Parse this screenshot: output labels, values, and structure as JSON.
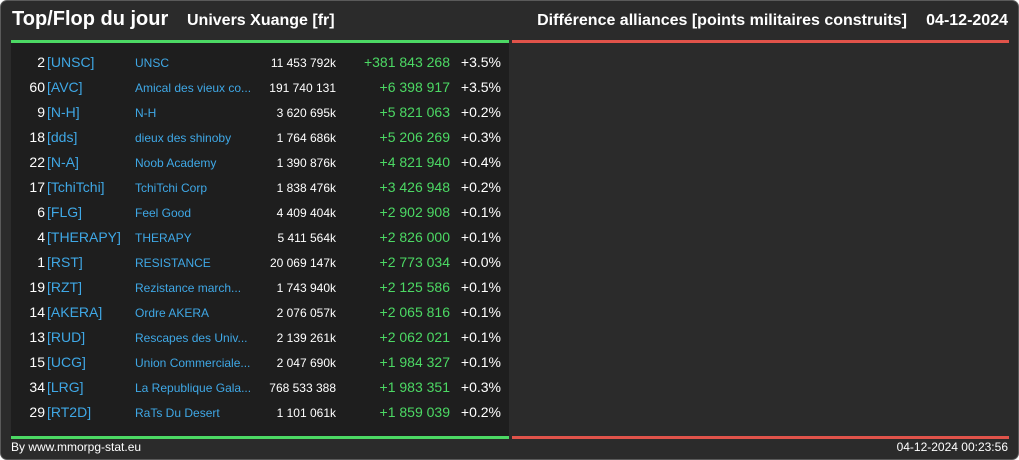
{
  "header": {
    "title": "Top/Flop du jour",
    "subtitle": "Univers Xuange [fr]",
    "right_title": "Différence alliances [points militaires construits]",
    "date": "04-12-2024"
  },
  "top_rows": [
    {
      "rank": "2",
      "tag": "[UNSC]",
      "name": "UNSC",
      "points": "11 453 792k",
      "diff": "+381 843 268",
      "pct": "+3.5%"
    },
    {
      "rank": "60",
      "tag": "[AVC]",
      "name": "Amical des vieux co...",
      "points": "191 740 131",
      "diff": "+6 398 917",
      "pct": "+3.5%"
    },
    {
      "rank": "9",
      "tag": "[N-H]",
      "name": "N-H",
      "points": "3 620 695k",
      "diff": "+5 821 063",
      "pct": "+0.2%"
    },
    {
      "rank": "18",
      "tag": "[dds]",
      "name": "dieux des shinoby",
      "points": "1 764 686k",
      "diff": "+5 206 269",
      "pct": "+0.3%"
    },
    {
      "rank": "22",
      "tag": "[N-A]",
      "name": "Noob Academy",
      "points": "1 390 876k",
      "diff": "+4 821 940",
      "pct": "+0.4%"
    },
    {
      "rank": "17",
      "tag": "[TchiTchi]",
      "name": "TchiTchi Corp",
      "points": "1 838 476k",
      "diff": "+3 426 948",
      "pct": "+0.2%"
    },
    {
      "rank": "6",
      "tag": "[FLG]",
      "name": "Feel Good",
      "points": "4 409 404k",
      "diff": "+2 902 908",
      "pct": "+0.1%"
    },
    {
      "rank": "4",
      "tag": "[THERAPY]",
      "name": "THERAPY",
      "points": "5 411 564k",
      "diff": "+2 826 000",
      "pct": "+0.1%"
    },
    {
      "rank": "1",
      "tag": "[RST]",
      "name": "RESISTANCE",
      "points": "20 069 147k",
      "diff": "+2 773 034",
      "pct": "+0.0%"
    },
    {
      "rank": "19",
      "tag": "[RZT]",
      "name": "Rezistance march...",
      "points": "1 743 940k",
      "diff": "+2 125 586",
      "pct": "+0.1%"
    },
    {
      "rank": "14",
      "tag": "[AKERA]",
      "name": "Ordre AKERA",
      "points": "2 076 057k",
      "diff": "+2 065 816",
      "pct": "+0.1%"
    },
    {
      "rank": "13",
      "tag": "[RUD]",
      "name": "Rescapes des Univ...",
      "points": "2 139 261k",
      "diff": "+2 062 021",
      "pct": "+0.1%"
    },
    {
      "rank": "15",
      "tag": "[UCG]",
      "name": "Union Commerciale...",
      "points": "2 047 690k",
      "diff": "+1 984 327",
      "pct": "+0.1%"
    },
    {
      "rank": "34",
      "tag": "[LRG]",
      "name": "La Republique Gala...",
      "points": "768 533 388",
      "diff": "+1 983 351",
      "pct": "+0.3%"
    },
    {
      "rank": "29",
      "tag": "[RT2D]",
      "name": "RaTs Du Desert",
      "points": "1 101 061k",
      "diff": "+1 859 039",
      "pct": "+0.2%"
    }
  ],
  "flop_rows": [],
  "footer": {
    "credit": "By www.mmorpg-stat.eu",
    "timestamp": "04-12-2024 00:23:56"
  },
  "colors": {
    "background": "#2b2b2b",
    "panel": "#1e1e1e",
    "top_accent": "#4cd964",
    "flop_accent": "#e0534a",
    "link": "#3fa8e6"
  }
}
